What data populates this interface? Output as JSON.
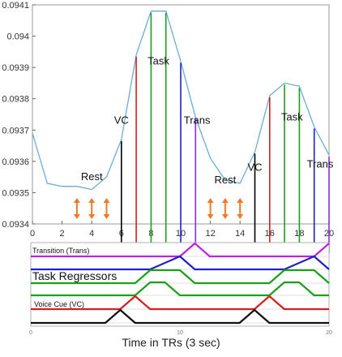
{
  "chart_data": [
    {
      "type": "line",
      "xlim": [
        0,
        20
      ],
      "ylim": [
        0.0934,
        0.0941
      ],
      "x_ticks": [
        "0",
        "2",
        "4",
        "6",
        "8",
        "10",
        "12",
        "14",
        "16",
        "18",
        "20"
      ],
      "y_ticks": [
        "0.0934",
        "0.0935",
        "0.0936",
        "0.0937",
        "0.0938",
        "0.0939",
        "0.094",
        "0.0941"
      ],
      "grid": false,
      "line_color": "#6aaed6",
      "series": [
        {
          "x": [
            0,
            1,
            2,
            3,
            4,
            5,
            6,
            7,
            8,
            9,
            10,
            11,
            12,
            13,
            14,
            15,
            16,
            17,
            18,
            19,
            20
          ],
          "values": [
            0.09369,
            0.09353,
            0.09352,
            0.09352,
            0.09351,
            0.09355,
            0.09367,
            0.09394,
            0.09408,
            0.09408,
            0.09392,
            0.09374,
            0.09361,
            0.09354,
            0.09353,
            0.09363,
            0.09381,
            0.09385,
            0.09384,
            0.09371,
            0.09362
          ]
        }
      ],
      "onset_markers": [
        {
          "x": 6,
          "color": "#000000"
        },
        {
          "x": 7,
          "color": "#d62020"
        },
        {
          "x": 8,
          "color": "#1aa01a"
        },
        {
          "x": 9,
          "color": "#1aa01a"
        },
        {
          "x": 10,
          "color": "#2020c8"
        },
        {
          "x": 11,
          "color": "#8a2be2"
        },
        {
          "x": 15,
          "color": "#000000"
        },
        {
          "x": 16,
          "color": "#d62020"
        },
        {
          "x": 17,
          "color": "#1aa01a"
        },
        {
          "x": 18,
          "color": "#1aa01a"
        },
        {
          "x": 19,
          "color": "#2020c8"
        },
        {
          "x": 20,
          "color": "#8a2be2"
        }
      ],
      "rest_arrows_x": [
        3,
        4,
        5,
        12,
        13,
        14
      ],
      "arrow_color": "#f07a28",
      "annotations": [
        {
          "text": "Rest",
          "x": 4,
          "y": 0.09354
        },
        {
          "text": "VC",
          "x": 6,
          "y": 0.09372
        },
        {
          "text": "Task",
          "x": 8.5,
          "y": 0.09391
        },
        {
          "text": "Trans",
          "x": 11.1,
          "y": 0.09372
        },
        {
          "text": "Rest",
          "x": 13,
          "y": 0.09353
        },
        {
          "text": "VC",
          "x": 15,
          "y": 0.09357
        },
        {
          "text": "Task",
          "x": 17.5,
          "y": 0.09373
        },
        {
          "text": "Trans",
          "x": 19.4,
          "y": 0.09358
        }
      ]
    },
    {
      "type": "line",
      "xlim": [
        0,
        20
      ],
      "x_ticks": [
        "0",
        "10",
        "20"
      ],
      "xlabel": "Time in TRs (3 sec)",
      "row_labels": {
        "transition": "Transition (Trans)",
        "task": "Task Regressors",
        "voice_cue": "Voice Cue (VC)"
      },
      "regressors": [
        {
          "name": "Transition (Trans)",
          "color": "#c020e0",
          "baseline": 0,
          "x": [
            0,
            10,
            11,
            12,
            19,
            20
          ],
          "values": [
            0,
            0,
            1,
            0,
            0,
            1
          ]
        },
        {
          "name": "",
          "color": "#2020c8",
          "baseline": 1,
          "x": [
            0,
            8,
            10,
            11,
            17,
            19,
            20
          ],
          "values": [
            0,
            0,
            1,
            0,
            0,
            1,
            0
          ]
        },
        {
          "name": "",
          "color": "#1aa01a",
          "baseline": 2,
          "x": [
            0,
            7,
            8,
            10,
            11,
            16,
            17,
            19,
            20
          ],
          "values": [
            0,
            0,
            1,
            1,
            0,
            0,
            1,
            1,
            0
          ]
        },
        {
          "name": "",
          "color": "#1aa01a",
          "baseline": 3,
          "x": [
            0,
            7,
            8,
            9,
            10,
            16,
            17,
            18,
            19,
            20
          ],
          "values": [
            0,
            0,
            1,
            1,
            0,
            0,
            1,
            1,
            0,
            0
          ]
        },
        {
          "name": "",
          "color": "#d62020",
          "baseline": 4,
          "x": [
            0,
            6,
            7,
            8,
            15,
            16,
            17,
            20
          ],
          "values": [
            0,
            0,
            1,
            0,
            0,
            1,
            0,
            0
          ]
        },
        {
          "name": "Voice Cue (VC)",
          "color": "#111111",
          "baseline": 5,
          "x": [
            0,
            5,
            6,
            7,
            14,
            15,
            16,
            20
          ],
          "values": [
            0,
            0,
            1,
            0,
            0,
            1,
            0,
            0
          ]
        }
      ]
    }
  ]
}
